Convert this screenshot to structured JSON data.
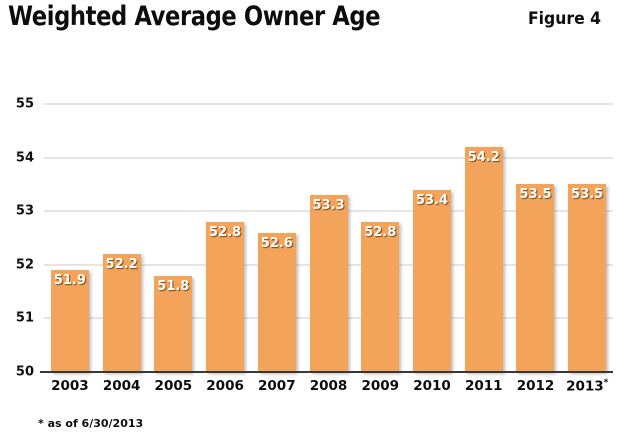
{
  "header": {
    "title": "Weighted Average Owner Age",
    "figure_label": "Figure 4"
  },
  "footnote": "* as of 6/30/2013",
  "colors": {
    "bar": "#F4A45A",
    "bar_label": "#FFFFFF",
    "gridline": "#CBCBCB",
    "baseline": "#383838",
    "text": "#0D0D0D"
  },
  "chart_data": {
    "type": "bar",
    "title": "Weighted Average Owner Age",
    "subtitle": "Figure 4",
    "categories": [
      "2003",
      "2004",
      "2005",
      "2006",
      "2007",
      "2008",
      "2009",
      "2010",
      "2011",
      "2012",
      "2013*"
    ],
    "values": [
      51.9,
      52.2,
      51.8,
      52.8,
      52.6,
      53.3,
      52.8,
      53.4,
      54.2,
      53.5,
      53.5
    ],
    "xlabel": "",
    "ylabel": "",
    "ylim": [
      50,
      55
    ],
    "yticks": [
      50,
      51,
      52,
      53,
      54,
      55
    ],
    "grid": true,
    "legend": false,
    "value_labels": true,
    "annotations": [
      "* as of 6/30/2013"
    ]
  }
}
